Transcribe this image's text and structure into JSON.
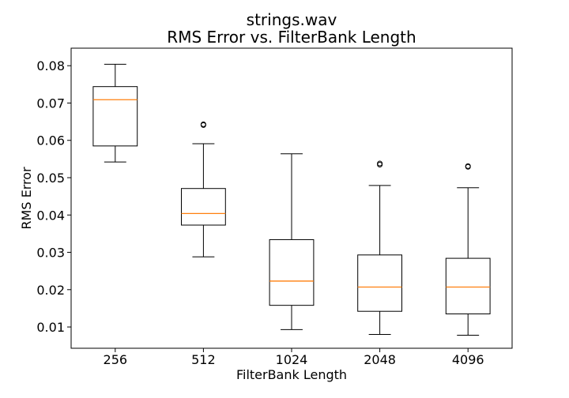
{
  "chart_data": {
    "type": "box",
    "title": "strings.wav",
    "subtitle": "RMS Error vs. FilterBank Length",
    "xlabel": "FilterBank Length",
    "ylabel": "RMS Error",
    "categories": [
      "256",
      "512",
      "1024",
      "2048",
      "4096"
    ],
    "ylim": [
      0.0043,
      0.0847
    ],
    "yticks": [
      0.01,
      0.02,
      0.03,
      0.04,
      0.05,
      0.06,
      0.07,
      0.08
    ],
    "ytick_labels": [
      "0.01",
      "0.02",
      "0.03",
      "0.04",
      "0.05",
      "0.06",
      "0.07",
      "0.08"
    ],
    "grid": false,
    "boxes": [
      {
        "whisker_low": 0.0542,
        "q1": 0.0585,
        "median": 0.0709,
        "q3": 0.0744,
        "whisker_high": 0.0804,
        "outliers": []
      },
      {
        "whisker_low": 0.0288,
        "q1": 0.0373,
        "median": 0.0404,
        "q3": 0.0471,
        "whisker_high": 0.0591,
        "outliers": [
          0.0641,
          0.0643
        ]
      },
      {
        "whisker_low": 0.0093,
        "q1": 0.0158,
        "median": 0.0223,
        "q3": 0.0334,
        "whisker_high": 0.0564,
        "outliers": []
      },
      {
        "whisker_low": 0.008,
        "q1": 0.0142,
        "median": 0.0207,
        "q3": 0.0293,
        "whisker_high": 0.0479,
        "outliers": [
          0.0535,
          0.0538
        ]
      },
      {
        "whisker_low": 0.0078,
        "q1": 0.0135,
        "median": 0.0207,
        "q3": 0.0284,
        "whisker_high": 0.0473,
        "outliers": [
          0.0529,
          0.0531
        ]
      }
    ],
    "colors": {
      "box": "#000000",
      "median": "#ff7f0e",
      "outlier_edge": "#000000",
      "background": "#ffffff"
    }
  }
}
